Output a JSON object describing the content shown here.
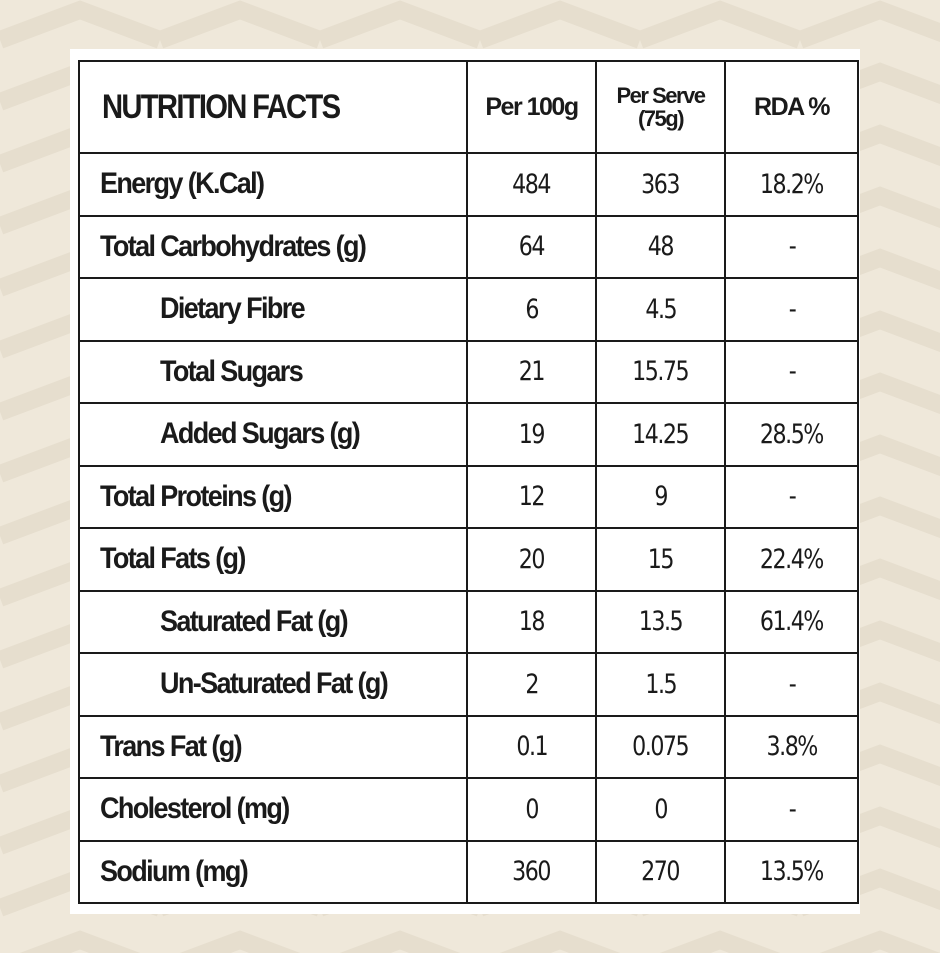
{
  "table": {
    "header": {
      "title": "NUTRITION FACTS",
      "per_100g": "Per 100g",
      "per_serve_line1": "Per Serve",
      "per_serve_line2": "(75g)",
      "rda": "RDA %"
    },
    "rows": [
      {
        "name": "Energy (K.Cal)",
        "indent": false,
        "per_100g": "484",
        "per_serve": "363",
        "rda": "18.2%"
      },
      {
        "name": "Total Carbohydrates (g)",
        "indent": false,
        "per_100g": "64",
        "per_serve": "48",
        "rda": "-"
      },
      {
        "name": "Dietary Fibre",
        "indent": true,
        "per_100g": "6",
        "per_serve": "4.5",
        "rda": "-"
      },
      {
        "name": "Total Sugars",
        "indent": true,
        "per_100g": "21",
        "per_serve": "15.75",
        "rda": "-"
      },
      {
        "name": "Added Sugars (g)",
        "indent": true,
        "per_100g": "19",
        "per_serve": "14.25",
        "rda": "28.5%"
      },
      {
        "name": "Total Proteins (g)",
        "indent": false,
        "per_100g": "12",
        "per_serve": "9",
        "rda": "-"
      },
      {
        "name": "Total Fats (g)",
        "indent": false,
        "per_100g": "20",
        "per_serve": "15",
        "rda": "22.4%"
      },
      {
        "name": "Saturated Fat (g)",
        "indent": true,
        "per_100g": "18",
        "per_serve": "13.5",
        "rda": "61.4%"
      },
      {
        "name": "Un-Saturated Fat (g)",
        "indent": true,
        "per_100g": "2",
        "per_serve": "1.5",
        "rda": "-"
      },
      {
        "name": "Trans Fat (g)",
        "indent": false,
        "per_100g": "0.1",
        "per_serve": "0.075",
        "rda": "3.8%"
      },
      {
        "name": "Cholesterol (mg)",
        "indent": false,
        "per_100g": "0",
        "per_serve": "0",
        "rda": "-"
      },
      {
        "name": "Sodium (mg)",
        "indent": false,
        "per_100g": "360",
        "per_serve": "270",
        "rda": "13.5%"
      }
    ]
  },
  "colors": {
    "background": "#efe8da",
    "card": "#ffffff",
    "ink": "#1a1a1a"
  }
}
